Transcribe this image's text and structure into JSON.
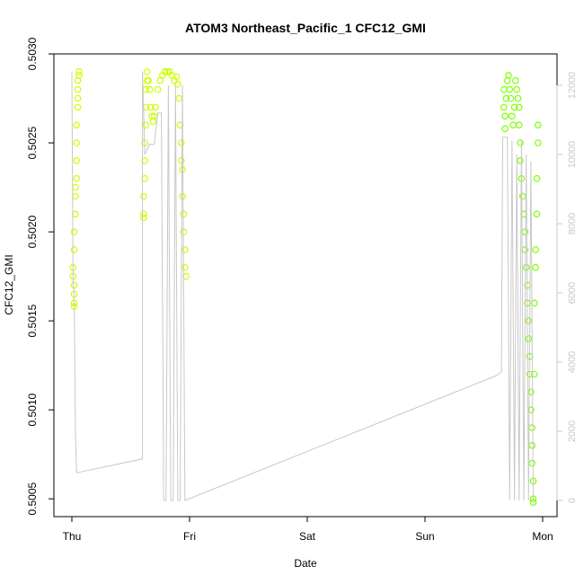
{
  "chart_data": {
    "type": "scatter",
    "title": "ATOM3 Northeast_Pacific_1 CFC12_GMI",
    "xlabel": "Date",
    "ylabel": "CFC12_GMI",
    "x_ticks": [
      "Thu",
      "Fri",
      "Sat",
      "Sun",
      "Mon"
    ],
    "x_range_days": [
      -0.1,
      4.2
    ],
    "ylim": [
      0.5004,
      0.503
    ],
    "y_ticks": [
      "0.5005",
      "0.5010",
      "0.5015",
      "0.5020",
      "0.5025",
      "0.5030"
    ],
    "y2lim": [
      -200,
      13000
    ],
    "y2_ticks": [
      "0",
      "2000",
      "4000",
      "6000",
      "8000",
      "10000",
      "12000"
    ],
    "colors": {
      "axis": "#000000",
      "altitude_line": "#c8c8c8",
      "points_early": "#ccff00",
      "points_late": "#80ff00"
    },
    "series": [
      {
        "role": "CFC12_GMI points",
        "points": [
          [
            0.01,
            0.5018
          ],
          [
            0.01,
            0.50175
          ],
          [
            0.02,
            0.5017
          ],
          [
            0.02,
            0.50165
          ],
          [
            0.02,
            0.5016
          ],
          [
            0.02,
            0.50158
          ],
          [
            0.02,
            0.5019
          ],
          [
            0.02,
            0.502
          ],
          [
            0.03,
            0.5021
          ],
          [
            0.03,
            0.5022
          ],
          [
            0.03,
            0.50225
          ],
          [
            0.04,
            0.5023
          ],
          [
            0.04,
            0.5024
          ],
          [
            0.04,
            0.5025
          ],
          [
            0.04,
            0.5026
          ],
          [
            0.05,
            0.5027
          ],
          [
            0.05,
            0.50275
          ],
          [
            0.05,
            0.5028
          ],
          [
            0.05,
            0.50285
          ],
          [
            0.06,
            0.5029
          ],
          [
            0.06,
            0.50288
          ],
          [
            0.61,
            0.50208
          ],
          [
            0.61,
            0.5021
          ],
          [
            0.61,
            0.5022
          ],
          [
            0.62,
            0.5023
          ],
          [
            0.62,
            0.5024
          ],
          [
            0.62,
            0.5025
          ],
          [
            0.63,
            0.5026
          ],
          [
            0.63,
            0.5027
          ],
          [
            0.63,
            0.5028
          ],
          [
            0.64,
            0.50285
          ],
          [
            0.64,
            0.5029
          ],
          [
            0.65,
            0.50285
          ],
          [
            0.66,
            0.5028
          ],
          [
            0.67,
            0.5027
          ],
          [
            0.68,
            0.50265
          ],
          [
            0.69,
            0.50262
          ],
          [
            0.7,
            0.50265
          ],
          [
            0.71,
            0.5027
          ],
          [
            0.73,
            0.5028
          ],
          [
            0.75,
            0.50285
          ],
          [
            0.77,
            0.50288
          ],
          [
            0.79,
            0.5029
          ],
          [
            0.81,
            0.5029
          ],
          [
            0.83,
            0.5029
          ],
          [
            0.85,
            0.50288
          ],
          [
            0.87,
            0.50285
          ],
          [
            0.89,
            0.50287
          ],
          [
            0.9,
            0.50283
          ],
          [
            0.91,
            0.50275
          ],
          [
            0.92,
            0.5026
          ],
          [
            0.93,
            0.5025
          ],
          [
            0.93,
            0.5024
          ],
          [
            0.94,
            0.50235
          ],
          [
            0.94,
            0.5022
          ],
          [
            0.95,
            0.5021
          ],
          [
            0.95,
            0.502
          ],
          [
            0.96,
            0.5019
          ],
          [
            0.96,
            0.5018
          ],
          [
            0.97,
            0.50175
          ],
          [
            3.67,
            0.5028
          ],
          [
            3.67,
            0.5027
          ],
          [
            3.68,
            0.50265
          ],
          [
            3.68,
            0.50258
          ],
          [
            3.69,
            0.50275
          ],
          [
            3.7,
            0.50285
          ],
          [
            3.71,
            0.50288
          ],
          [
            3.72,
            0.5028
          ],
          [
            3.73,
            0.50275
          ],
          [
            3.74,
            0.50265
          ],
          [
            3.75,
            0.5026
          ],
          [
            3.76,
            0.5027
          ],
          [
            3.77,
            0.50285
          ],
          [
            3.78,
            0.5028
          ],
          [
            3.79,
            0.50275
          ],
          [
            3.8,
            0.5027
          ],
          [
            3.8,
            0.5026
          ],
          [
            3.81,
            0.5025
          ],
          [
            3.81,
            0.5024
          ],
          [
            3.82,
            0.5023
          ],
          [
            3.83,
            0.5022
          ],
          [
            3.84,
            0.5021
          ],
          [
            3.85,
            0.502
          ],
          [
            3.85,
            0.5019
          ],
          [
            3.86,
            0.5018
          ],
          [
            3.87,
            0.5017
          ],
          [
            3.87,
            0.5016
          ],
          [
            3.88,
            0.5015
          ],
          [
            3.88,
            0.5014
          ],
          [
            3.89,
            0.5013
          ],
          [
            3.89,
            0.5012
          ],
          [
            3.9,
            0.5011
          ],
          [
            3.9,
            0.501
          ],
          [
            3.91,
            0.5009
          ],
          [
            3.91,
            0.5008
          ],
          [
            3.91,
            0.5007
          ],
          [
            3.92,
            0.5006
          ],
          [
            3.92,
            0.5005
          ],
          [
            3.92,
            0.50048
          ],
          [
            3.93,
            0.5012
          ],
          [
            3.93,
            0.5016
          ],
          [
            3.94,
            0.5018
          ],
          [
            3.94,
            0.5019
          ],
          [
            3.95,
            0.5021
          ],
          [
            3.95,
            0.5023
          ],
          [
            3.96,
            0.5025
          ],
          [
            3.96,
            0.5026
          ]
        ]
      },
      {
        "role": "altitude line (right axis)",
        "points": [
          [
            0.0,
            12400
          ],
          [
            0.0,
            12400
          ],
          [
            0.01,
            6300
          ],
          [
            0.02,
            6000
          ],
          [
            0.03,
            2000
          ],
          [
            0.04,
            800
          ],
          [
            0.6,
            1200
          ],
          [
            0.6,
            12400
          ],
          [
            0.62,
            10000
          ],
          [
            0.66,
            10300
          ],
          [
            0.7,
            10300
          ],
          [
            0.73,
            11200
          ],
          [
            0.76,
            11200
          ],
          [
            0.78,
            0
          ],
          [
            0.8,
            0
          ],
          [
            0.82,
            12000
          ],
          [
            0.84,
            0
          ],
          [
            0.86,
            0
          ],
          [
            0.88,
            12000
          ],
          [
            0.9,
            0
          ],
          [
            0.92,
            0
          ],
          [
            0.94,
            12000
          ],
          [
            0.96,
            0
          ],
          [
            3.6,
            3600
          ],
          [
            3.65,
            3700
          ],
          [
            3.66,
            10500
          ],
          [
            3.7,
            10500
          ],
          [
            3.72,
            0
          ],
          [
            3.74,
            10400
          ],
          [
            3.76,
            0
          ],
          [
            3.78,
            10000
          ],
          [
            3.8,
            0
          ],
          [
            3.82,
            10400
          ],
          [
            3.84,
            0
          ],
          [
            3.86,
            10000
          ],
          [
            3.88,
            0
          ],
          [
            3.9,
            9800
          ],
          [
            3.92,
            0
          ]
        ]
      }
    ]
  }
}
